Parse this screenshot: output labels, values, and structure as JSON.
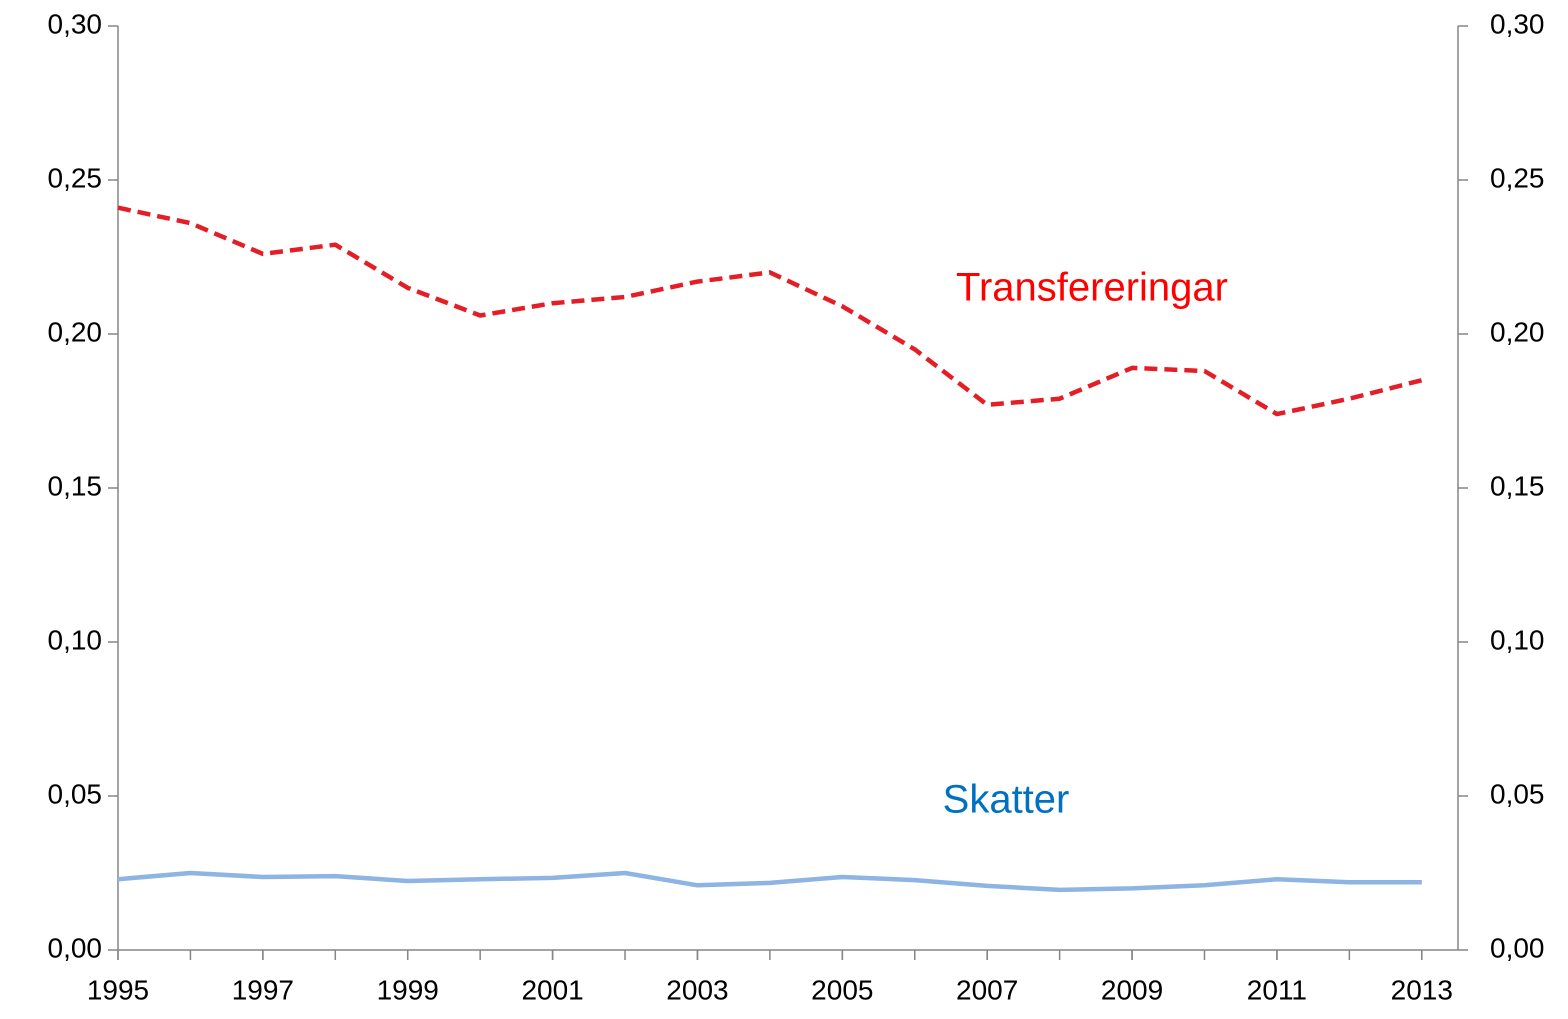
{
  "chart_data": {
    "type": "line",
    "x": [
      1995,
      1996,
      1997,
      1998,
      1999,
      2000,
      2001,
      2002,
      2003,
      2004,
      2005,
      2006,
      2007,
      2008,
      2009,
      2010,
      2011,
      2012,
      2013
    ],
    "xlim": [
      1995,
      2013.5
    ],
    "xticks": [
      1995,
      1997,
      1999,
      2001,
      2003,
      2005,
      2007,
      2009,
      2011,
      2013
    ],
    "ylim": [
      0,
      0.3
    ],
    "yticks": [
      {
        "value": 0,
        "label": "0,00"
      },
      {
        "value": 0.05,
        "label": "0,05"
      },
      {
        "value": 0.1,
        "label": "0,10"
      },
      {
        "value": 0.15,
        "label": "0,15"
      },
      {
        "value": 0.2,
        "label": "0,20"
      },
      {
        "value": 0.25,
        "label": "0,25"
      },
      {
        "value": 0.3,
        "label": "0,30"
      }
    ],
    "y2lim": [
      0,
      0.3
    ],
    "y2ticks": [
      {
        "value": 0,
        "label": "0,00"
      },
      {
        "value": 0.05,
        "label": "0,05"
      },
      {
        "value": 0.1,
        "label": "0,10"
      },
      {
        "value": 0.15,
        "label": "0,15"
      },
      {
        "value": 0.2,
        "label": "0,20"
      },
      {
        "value": 0.25,
        "label": "0,25"
      },
      {
        "value": 0.3,
        "label": "0,30"
      }
    ],
    "grid": false,
    "series": [
      {
        "name": "Transfereringar",
        "color": "#e41e26",
        "label_color": "#ff0000",
        "dashed": true,
        "values": [
          0.241,
          0.236,
          0.226,
          0.229,
          0.215,
          0.206,
          0.21,
          0.212,
          0.217,
          0.22,
          0.209,
          0.195,
          0.177,
          0.179,
          0.189,
          0.188,
          0.174,
          0.179,
          0.185
        ]
      },
      {
        "name": "Skatter",
        "color": "#8db4e2",
        "label_color": "#0070c0",
        "dashed": false,
        "values": [
          0.023,
          0.025,
          0.0237,
          0.024,
          0.0224,
          0.023,
          0.0234,
          0.025,
          0.021,
          0.0218,
          0.0237,
          0.0227,
          0.0208,
          0.0195,
          0.02,
          0.021,
          0.023,
          0.022,
          0.022
        ]
      }
    ]
  }
}
